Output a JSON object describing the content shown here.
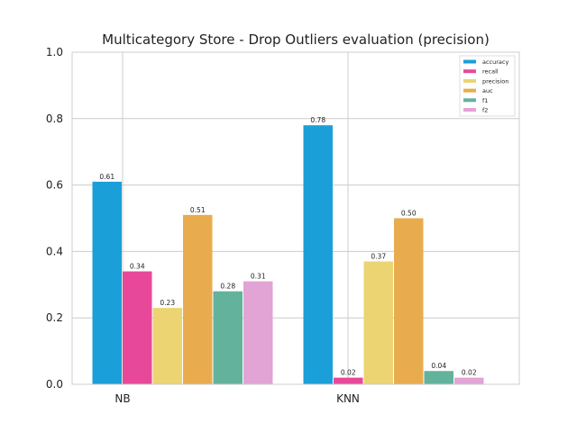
{
  "chart_data": {
    "type": "bar",
    "title": "Multicategory Store - Drop Outliers evaluation (precision)",
    "xlabel": "",
    "ylabel": "",
    "categories": [
      "NB",
      "KNN"
    ],
    "ylim": [
      0,
      1
    ],
    "yticks": [
      "0.0",
      "0.2",
      "0.4",
      "0.6",
      "0.8",
      "1.0"
    ],
    "grid": true,
    "legend_position": "top-right",
    "series": [
      {
        "name": "accuracy",
        "color": "#1a9fd9",
        "values": [
          0.61,
          0.78
        ],
        "labels": [
          "0.61",
          "0.78"
        ]
      },
      {
        "name": "recall",
        "color": "#e8489a",
        "values": [
          0.34,
          0.02
        ],
        "labels": [
          "0.34",
          "0.02"
        ]
      },
      {
        "name": "precision",
        "color": "#ecd473",
        "values": [
          0.23,
          0.37
        ],
        "labels": [
          "0.23",
          "0.37"
        ]
      },
      {
        "name": "auc",
        "color": "#e8ac4e",
        "values": [
          0.51,
          0.5
        ],
        "labels": [
          "0.51",
          "0.50"
        ]
      },
      {
        "name": "f1",
        "color": "#62b29c",
        "values": [
          0.28,
          0.04
        ],
        "labels": [
          "0.28",
          "0.04"
        ]
      },
      {
        "name": "f2",
        "color": "#e2a3d5",
        "values": [
          0.31,
          0.02
        ],
        "labels": [
          "0.31",
          "0.02"
        ]
      }
    ]
  }
}
